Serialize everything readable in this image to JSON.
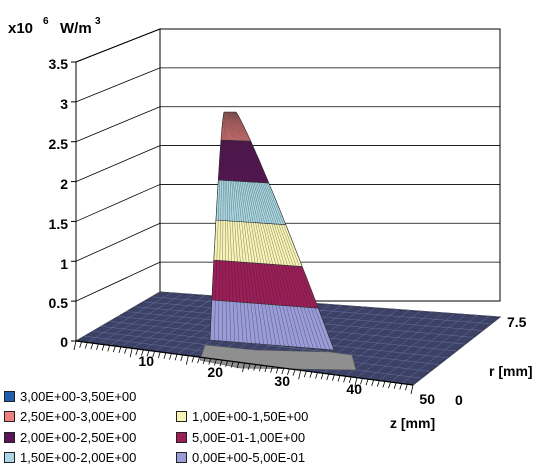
{
  "chart_data": {
    "type": "surface-3d",
    "title": "",
    "unit_prefix": "x10",
    "unit_exponent": "6",
    "unit_label": "W/m",
    "unit_label_exponent": "3",
    "z_axis": {
      "ticks": [
        "0",
        "0.5",
        "1",
        "1.5",
        "2",
        "2.5",
        "3",
        "3.5"
      ],
      "range": [
        0,
        3.5
      ]
    },
    "x_axis": {
      "label": "z [mm]",
      "ticks": [
        "10",
        "20",
        "30",
        "40",
        "50"
      ],
      "range": [
        0,
        60
      ]
    },
    "y_axis": {
      "label": "r [mm]",
      "ticks": [
        "0",
        "7.5"
      ],
      "range": [
        0,
        7.5
      ]
    },
    "peak": {
      "z": 23,
      "r": 0,
      "value": 2.85
    },
    "bands": [
      {
        "label": "3,00E+00-3,50E+00",
        "color": "#1f5fae",
        "from": 3.0,
        "to": 3.5
      },
      {
        "label": "2,50E+00-3,00E+00",
        "color": "#f08080",
        "from": 2.5,
        "to": 3.0
      },
      {
        "label": "2,00E+00-2,50E+00",
        "color": "#5a1458",
        "from": 2.0,
        "to": 2.5
      },
      {
        "label": "1,50E+00-2,00E+00",
        "color": "#a9d8e4",
        "from": 1.5,
        "to": 2.0
      },
      {
        "label": "1,00E+00-1,50E+00",
        "color": "#f8f4b6",
        "from": 1.0,
        "to": 1.5
      },
      {
        "label": "5,00E-01-1,00E+00",
        "color": "#9c1e58",
        "from": 0.5,
        "to": 1.0
      },
      {
        "label": "0,00E+00-5,00E-01",
        "color": "#9a9cda",
        "from": 0.0,
        "to": 0.5
      }
    ]
  }
}
